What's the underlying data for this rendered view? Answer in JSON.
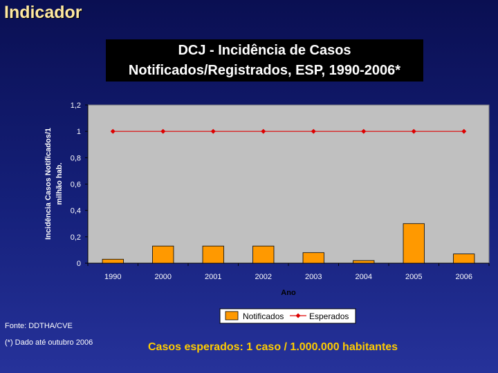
{
  "slide": {
    "title": "Indicador",
    "source": "Fonte: DDTHA/CVE",
    "note": "(*) Dado até outubro 2006",
    "expected_note": "Casos esperados:  1 caso / 1.000.000 habitantes"
  },
  "chart_data": {
    "type": "bar",
    "title_lines": [
      "DCJ - Incidência de Casos",
      "Notificados/Registrados, ESP, 1990-2006*"
    ],
    "ylabel_lines": [
      "Incidência Casos Notificados/1",
      "milhão hab."
    ],
    "xlabel": "Ano",
    "categories": [
      "1990",
      "2000",
      "2001",
      "2002",
      "2003",
      "2004",
      "2005",
      "2006"
    ],
    "series": [
      {
        "name": "Notificados",
        "type": "bar",
        "color": "#ff9900",
        "values": [
          0.03,
          0.13,
          0.13,
          0.13,
          0.08,
          0.02,
          0.3,
          0.07
        ]
      },
      {
        "name": "Esperados",
        "type": "line",
        "color": "#dd0000",
        "values": [
          1,
          1,
          1,
          1,
          1,
          1,
          1,
          1
        ]
      }
    ],
    "ylim": [
      0,
      1.2
    ],
    "yticks": [
      "0",
      "0,2",
      "0,4",
      "0,6",
      "0,8",
      "1",
      "1,2"
    ],
    "ytick_values": [
      0,
      0.2,
      0.4,
      0.6,
      0.8,
      1.0,
      1.2
    ],
    "legend_position": "bottom-right",
    "plot_background": "#c0c0c0",
    "grid": false
  }
}
